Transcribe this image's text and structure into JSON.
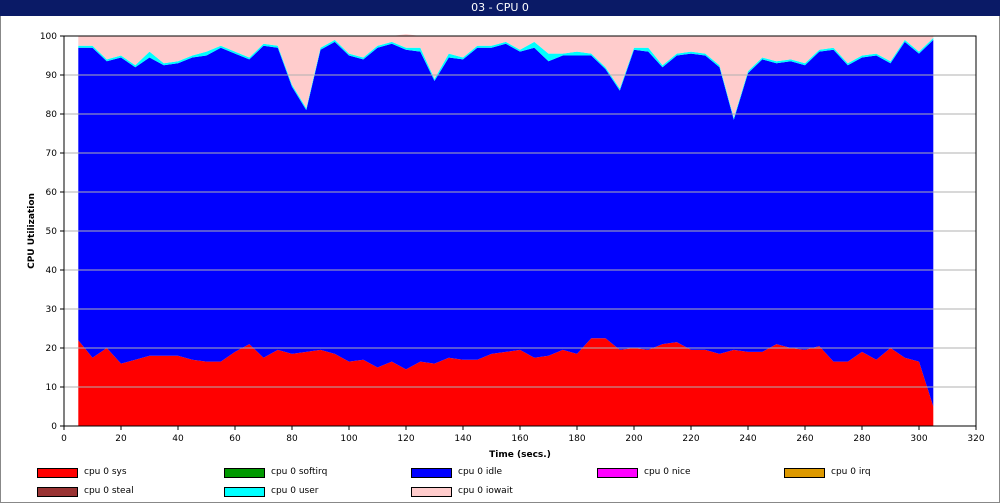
{
  "window": {
    "title": "03 - CPU 0"
  },
  "chart_data": {
    "type": "area",
    "stacked": true,
    "xlabel": "Time (secs.)",
    "ylabel": "CPU Utilization",
    "xlim": [
      0,
      320
    ],
    "ylim": [
      0,
      100
    ],
    "x_ticks": [
      0,
      20,
      40,
      60,
      80,
      100,
      120,
      140,
      160,
      180,
      200,
      220,
      240,
      260,
      280,
      300,
      320
    ],
    "y_ticks": [
      0,
      10,
      20,
      30,
      40,
      50,
      60,
      70,
      80,
      90,
      100
    ],
    "grid": "horizontal",
    "legend_position": "bottom",
    "x": [
      5,
      10,
      15,
      20,
      25,
      30,
      35,
      40,
      45,
      50,
      55,
      60,
      65,
      70,
      75,
      80,
      85,
      90,
      95,
      100,
      105,
      110,
      115,
      120,
      125,
      130,
      135,
      140,
      145,
      150,
      155,
      160,
      165,
      170,
      175,
      180,
      185,
      190,
      195,
      200,
      205,
      210,
      215,
      220,
      225,
      230,
      235,
      240,
      245,
      250,
      255,
      260,
      265,
      270,
      275,
      280,
      285,
      290,
      295,
      300,
      305
    ],
    "series": [
      {
        "name": "cpu 0 sys",
        "color": "#ff0000",
        "values": [
          22,
          17.5,
          20,
          16,
          17,
          18,
          18,
          18,
          17,
          16.5,
          16.5,
          19,
          21,
          17.5,
          19.5,
          18.5,
          19,
          19.5,
          18.5,
          16.5,
          17,
          15,
          16.5,
          14.5,
          16.5,
          16,
          17.5,
          17,
          17,
          18.5,
          19,
          19.5,
          17.5,
          18,
          19.5,
          18.5,
          22.5,
          22.5,
          19.5,
          20,
          19.5,
          21,
          21.5,
          19.5,
          19.5,
          18.5,
          19.5,
          19,
          19,
          21,
          20,
          19.5,
          20.5,
          16.5,
          16.5,
          19,
          17,
          20,
          17.5,
          16.5,
          5
        ]
      },
      {
        "name": "cpu 0 softirq",
        "color": "#009900",
        "values": [
          0,
          0,
          0,
          0,
          0,
          0,
          0,
          0,
          0,
          0,
          0,
          0,
          0,
          0,
          0,
          0,
          0,
          0,
          0,
          0,
          0,
          0,
          0,
          0,
          0,
          0,
          0,
          0,
          0,
          0,
          0,
          0,
          0,
          0,
          0,
          0,
          0,
          0,
          0,
          0,
          0,
          0,
          0,
          0,
          0,
          0,
          0,
          0,
          0,
          0,
          0,
          0,
          0,
          0,
          0,
          0,
          0,
          0,
          0,
          0,
          0
        ]
      },
      {
        "name": "cpu 0 idle",
        "color": "#0000ff",
        "values": [
          75,
          79.5,
          73.5,
          78.5,
          75,
          76.5,
          74.5,
          75,
          77.5,
          78.5,
          80.5,
          76.5,
          73,
          80,
          77.5,
          68.5,
          62,
          77,
          80,
          78.5,
          77,
          82,
          81.5,
          82,
          79.5,
          72.5,
          77,
          77,
          80,
          78.5,
          79,
          76.5,
          79.5,
          75.5,
          75.5,
          76.5,
          72.5,
          69,
          66.5,
          76.5,
          76.5,
          71,
          73.5,
          76,
          75.5,
          73.5,
          59,
          71.5,
          75,
          72,
          73.5,
          73,
          75.5,
          80,
          76,
          75.5,
          78,
          73,
          81,
          79,
          94
        ]
      },
      {
        "name": "cpu 0 nice",
        "color": "#ff00ff",
        "values": [
          0,
          0,
          0,
          0,
          0,
          0,
          0,
          0,
          0,
          0,
          0,
          0,
          0,
          0,
          0,
          0,
          0,
          0,
          0,
          0,
          0,
          0,
          0,
          0,
          0,
          0,
          0,
          0,
          0,
          0,
          0,
          0,
          0,
          0,
          0,
          0,
          0,
          0,
          0,
          0,
          0,
          0,
          0,
          0,
          0,
          0,
          0,
          0,
          0,
          0,
          0,
          0,
          0,
          0,
          0,
          0,
          0,
          0,
          0,
          0,
          0
        ]
      },
      {
        "name": "cpu 0 irq",
        "color": "#dd9900",
        "values": [
          0,
          0,
          0,
          0,
          0,
          0,
          0,
          0,
          0,
          0,
          0,
          0,
          0,
          0,
          0,
          0,
          0,
          0,
          0,
          0,
          0,
          0,
          0,
          0,
          0,
          0,
          0,
          0,
          0,
          0,
          0,
          0,
          0,
          0,
          0,
          0,
          0,
          0,
          0,
          0,
          0,
          0,
          0,
          0,
          0,
          0,
          0,
          0,
          0,
          0,
          0,
          0,
          0,
          0,
          0,
          0,
          0,
          0,
          0,
          0,
          0
        ]
      },
      {
        "name": "cpu 0 steal",
        "color": "#993333",
        "values": [
          0,
          0,
          0,
          0,
          0,
          0,
          0,
          0,
          0,
          0,
          0,
          0,
          0,
          0,
          0,
          0,
          0,
          0,
          0,
          0,
          0,
          0,
          0,
          0,
          0,
          0,
          0,
          0,
          0,
          0,
          0,
          0,
          0,
          0,
          0,
          0,
          0,
          0,
          0,
          0,
          0,
          0,
          0,
          0,
          0,
          0,
          0,
          0,
          0,
          0,
          0,
          0,
          0,
          0,
          0,
          0,
          0,
          0,
          0,
          0,
          0
        ]
      },
      {
        "name": "cpu 0 user",
        "color": "#00ffff",
        "values": [
          0.5,
          0.5,
          0.5,
          0.5,
          0.5,
          1.5,
          0.5,
          0.5,
          0.5,
          1,
          0.5,
          0.5,
          0.5,
          0.5,
          0.5,
          0.5,
          0.5,
          0.5,
          0.5,
          0.5,
          0.5,
          0.5,
          0.5,
          0.5,
          1,
          0.5,
          1,
          0.5,
          0.5,
          0.5,
          0.5,
          0.5,
          1.5,
          2,
          0.5,
          1,
          0.5,
          0.5,
          0.5,
          0.5,
          1,
          0.5,
          0.5,
          0.5,
          0.5,
          0.5,
          0.5,
          0.5,
          0.5,
          0.5,
          0.5,
          0.5,
          0.5,
          0.5,
          0.5,
          0.5,
          0.5,
          0.5,
          0.5,
          0.5,
          0.5
        ]
      },
      {
        "name": "cpu 0 iowait",
        "color": "#ffcccc",
        "values": [
          2.5,
          2.5,
          6,
          5,
          7.5,
          4,
          7,
          6.5,
          5,
          4,
          2.5,
          4,
          5.5,
          2,
          2.5,
          12.5,
          18.5,
          3,
          1,
          4.5,
          5.5,
          2.5,
          1.5,
          3.5,
          3,
          11,
          4.5,
          5.5,
          2.5,
          2.5,
          1.5,
          3.5,
          1.5,
          4.5,
          4.5,
          4,
          4.5,
          8,
          13.5,
          3,
          3,
          7.5,
          4.5,
          4,
          4.5,
          7.5,
          21,
          9,
          5.5,
          6.5,
          6,
          7,
          3.5,
          3,
          7,
          5,
          4.5,
          6.5,
          1,
          4,
          0.5
        ]
      }
    ]
  }
}
